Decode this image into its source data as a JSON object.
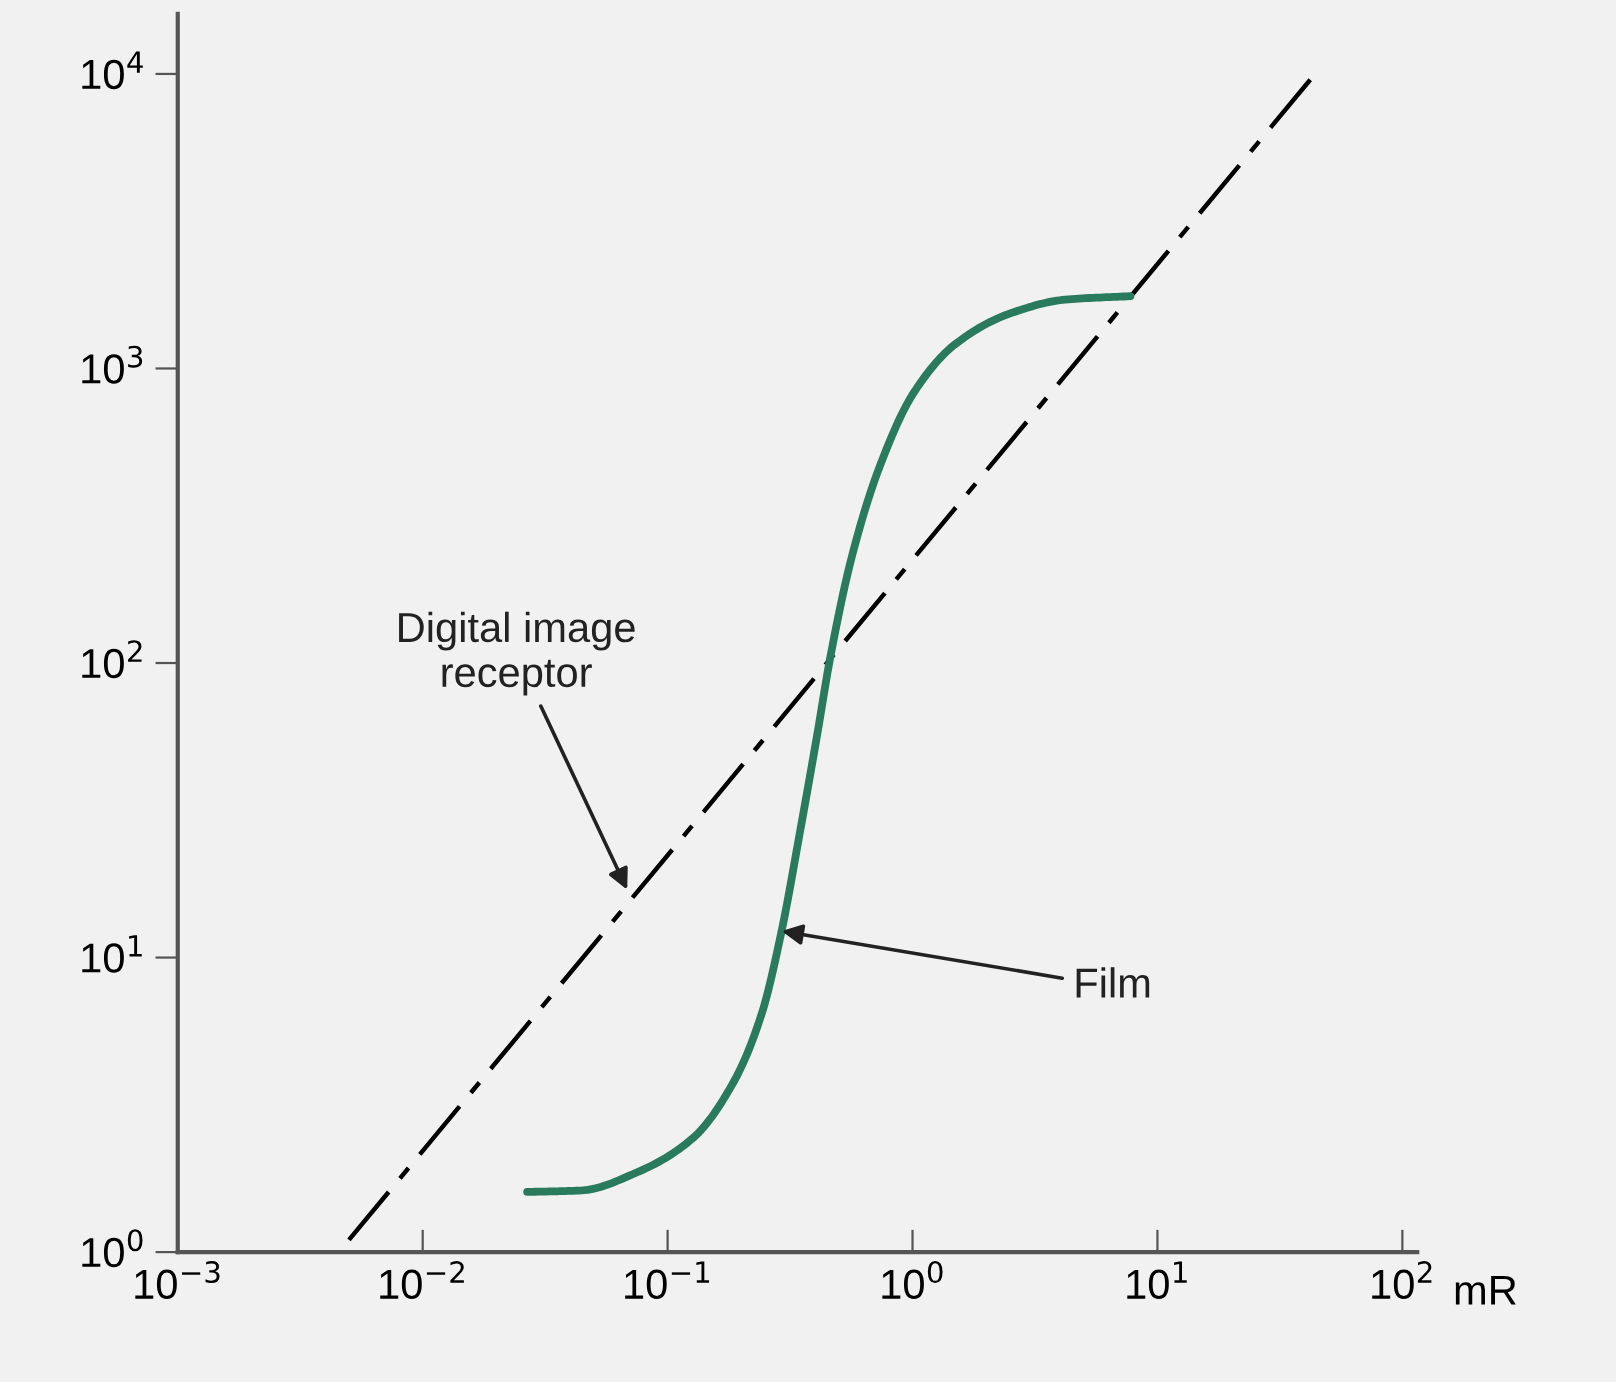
{
  "chart_data": {
    "type": "line",
    "xlabel": "mR",
    "log": "xy",
    "grid": false,
    "xlim": [
      0.001,
      115
    ],
    "ylim": [
      1,
      16000
    ],
    "xticks": [
      {
        "value": 0.001,
        "label": "10$^{−3}$"
      },
      {
        "value": 0.01,
        "label": "10$^{−2}$"
      },
      {
        "value": 0.1,
        "label": "10$^{−1}$"
      },
      {
        "value": 1,
        "label": "10$^{0}$"
      },
      {
        "value": 10,
        "label": "10$^{1}$"
      },
      {
        "value": 100,
        "label": "10$^{2}$"
      }
    ],
    "yticks": [
      {
        "value": 1,
        "label": "10$^{0}$"
      },
      {
        "value": 10,
        "label": "10$^{1}$"
      },
      {
        "value": 100,
        "label": "10$^{2}$"
      },
      {
        "value": 1000,
        "label": "10$^{3}$"
      },
      {
        "value": 10000,
        "label": "10$^{4}$"
      }
    ],
    "series": [
      {
        "color": "#000000",
        "line_style": "dashed",
        "x": [
          0.005,
          44
        ],
        "values": [
          1.1,
          10000
        ]
      },
      {
        "color": "#2a7a5e",
        "line_style": "solid",
        "x": [
          0.0267,
          0.0446,
          0.0755,
          0.127,
          0.186,
          0.242,
          0.292,
          0.346,
          0.406,
          0.463,
          0.564,
          0.729,
          1.01,
          1.49,
          2.49,
          4.2,
          7.76
        ],
        "values": [
          1.6,
          1.62,
          1.87,
          2.44,
          3.78,
          6.43,
          12.3,
          26.3,
          55.7,
          106,
          228,
          457,
          826,
          1207,
          1535,
          1713,
          1760
        ]
      }
    ],
    "annotations": [
      {
        "text": "Digital image\nreceptor",
        "x": 0.0684,
        "y": 17.0
      },
      {
        "text": "Film",
        "x": 0.292,
        "y": 12.3
      }
    ]
  }
}
